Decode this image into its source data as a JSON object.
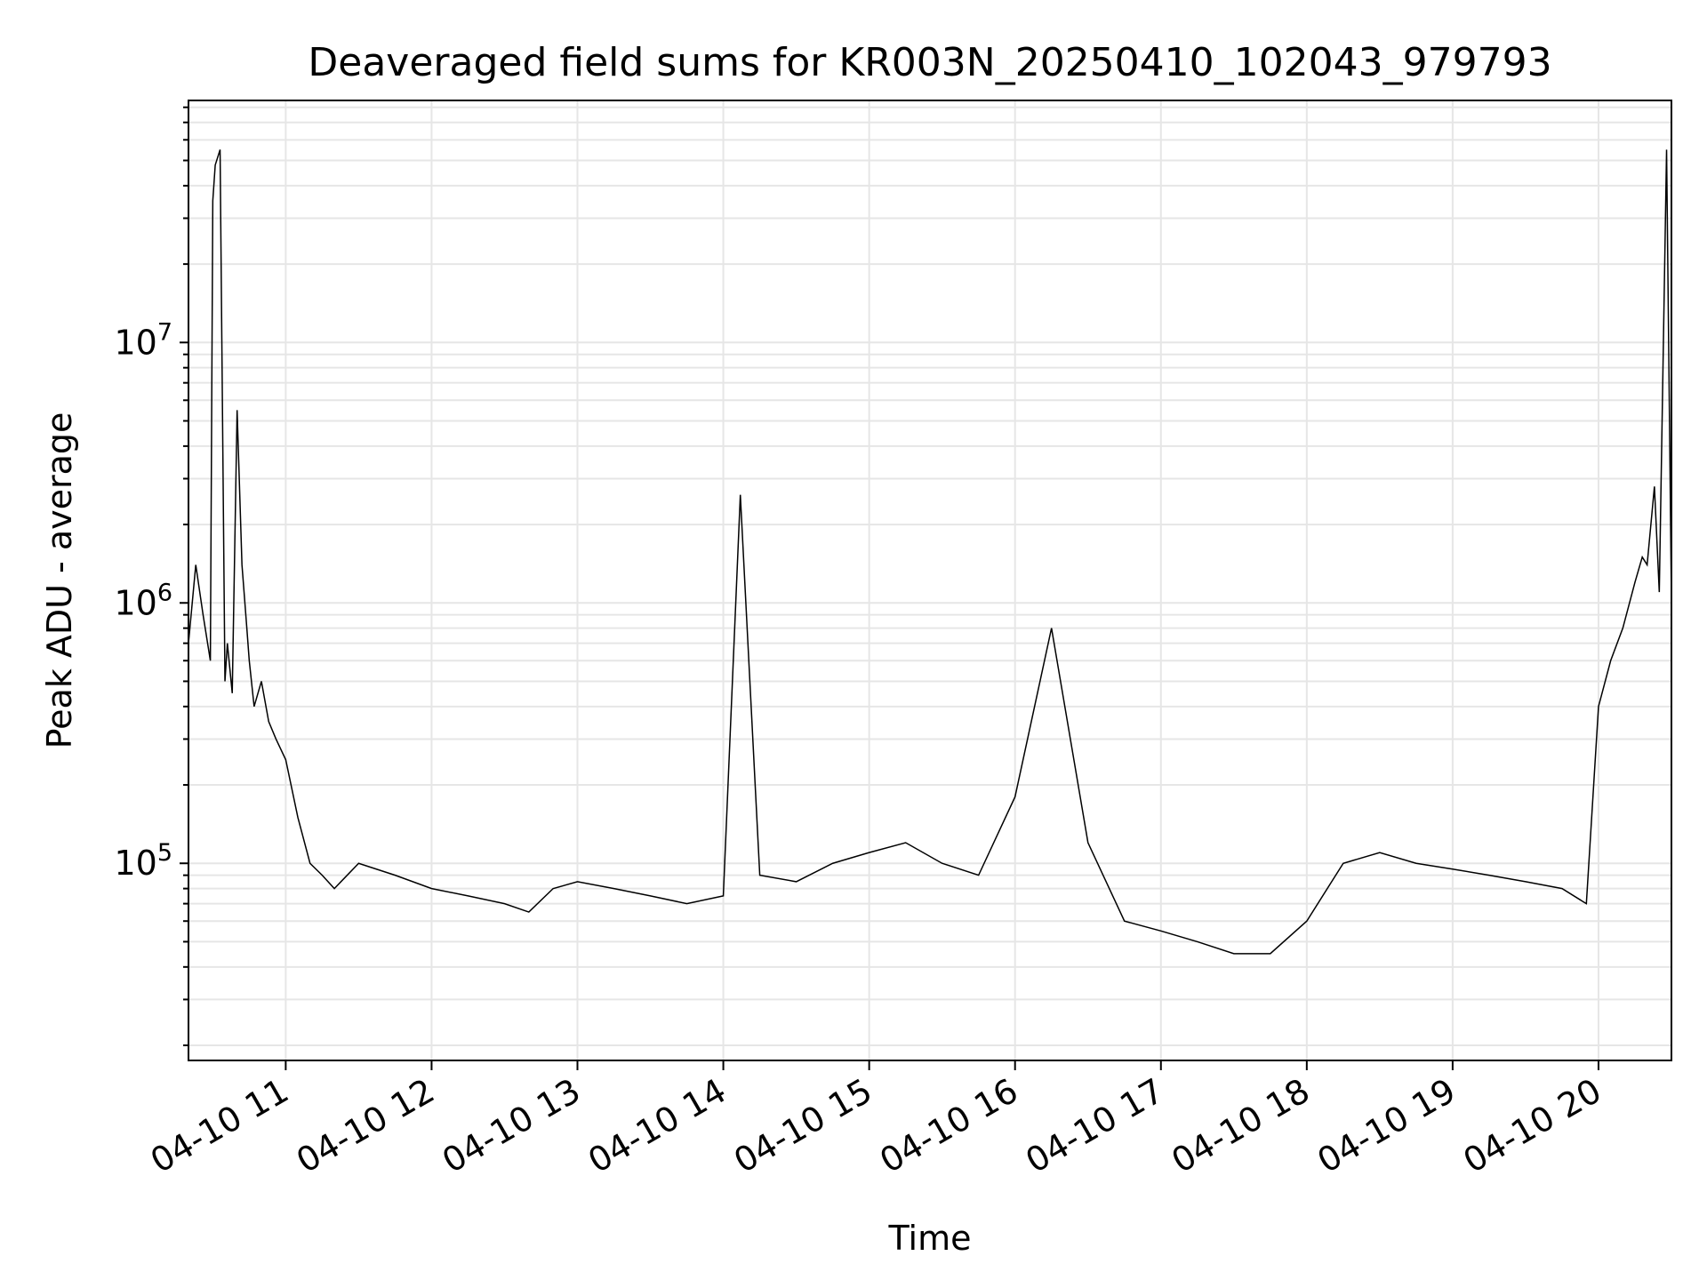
{
  "chart_data": {
    "type": "line",
    "title": "Deaveraged field sums for KR003N_20250410_102043_979793",
    "xlabel": "Time",
    "ylabel": "Peak ADU - average",
    "yscale": "log",
    "grid": true,
    "xlim": [
      "2025-04-10 10:20",
      "2025-04-10 20:30"
    ],
    "ylim": [
      17500,
      85000000
    ],
    "x_ticks": [
      {
        "t": "2025-04-10 11:00",
        "label": "04-10 11"
      },
      {
        "t": "2025-04-10 12:00",
        "label": "04-10 12"
      },
      {
        "t": "2025-04-10 13:00",
        "label": "04-10 13"
      },
      {
        "t": "2025-04-10 14:00",
        "label": "04-10 14"
      },
      {
        "t": "2025-04-10 15:00",
        "label": "04-10 15"
      },
      {
        "t": "2025-04-10 16:00",
        "label": "04-10 16"
      },
      {
        "t": "2025-04-10 17:00",
        "label": "04-10 17"
      },
      {
        "t": "2025-04-10 18:00",
        "label": "04-10 18"
      },
      {
        "t": "2025-04-10 19:00",
        "label": "04-10 19"
      },
      {
        "t": "2025-04-10 20:00",
        "label": "04-10 20"
      }
    ],
    "y_ticks": [
      {
        "value": 100000,
        "base": "10",
        "exp": "5"
      },
      {
        "value": 1000000,
        "base": "10",
        "exp": "6"
      },
      {
        "value": 10000000,
        "base": "10",
        "exp": "7"
      }
    ],
    "line_color": "#000000",
    "series": [
      {
        "x": [
          "2025-04-10 10:20",
          "2025-04-10 10:23",
          "2025-04-10 10:26",
          "2025-04-10 10:29",
          "2025-04-10 10:30",
          "2025-04-10 10:31",
          "2025-04-10 10:33",
          "2025-04-10 10:35",
          "2025-04-10 10:36",
          "2025-04-10 10:38",
          "2025-04-10 10:40",
          "2025-04-10 10:42",
          "2025-04-10 10:44",
          "2025-04-10 10:45",
          "2025-04-10 10:47",
          "2025-04-10 10:50",
          "2025-04-10 10:53",
          "2025-04-10 10:56",
          "2025-04-10 11:00",
          "2025-04-10 11:05",
          "2025-04-10 11:10",
          "2025-04-10 11:15",
          "2025-04-10 11:20",
          "2025-04-10 11:30",
          "2025-04-10 11:45",
          "2025-04-10 12:00",
          "2025-04-10 12:15",
          "2025-04-10 12:30",
          "2025-04-10 12:40",
          "2025-04-10 12:50",
          "2025-04-10 13:00",
          "2025-04-10 13:15",
          "2025-04-10 13:30",
          "2025-04-10 13:45",
          "2025-04-10 14:00",
          "2025-04-10 14:07",
          "2025-04-10 14:15",
          "2025-04-10 14:30",
          "2025-04-10 14:45",
          "2025-04-10 15:00",
          "2025-04-10 15:15",
          "2025-04-10 15:30",
          "2025-04-10 15:45",
          "2025-04-10 16:00",
          "2025-04-10 16:15",
          "2025-04-10 16:30",
          "2025-04-10 16:45",
          "2025-04-10 17:00",
          "2025-04-10 17:15",
          "2025-04-10 17:30",
          "2025-04-10 17:45",
          "2025-04-10 18:00",
          "2025-04-10 18:15",
          "2025-04-10 18:30",
          "2025-04-10 18:45",
          "2025-04-10 19:00",
          "2025-04-10 19:15",
          "2025-04-10 19:30",
          "2025-04-10 19:45",
          "2025-04-10 19:55",
          "2025-04-10 20:00",
          "2025-04-10 20:05",
          "2025-04-10 20:10",
          "2025-04-10 20:15",
          "2025-04-10 20:18",
          "2025-04-10 20:20",
          "2025-04-10 20:23",
          "2025-04-10 20:25",
          "2025-04-10 20:28",
          "2025-04-10 20:30"
        ],
        "y": [
          700000,
          1400000,
          900000,
          600000,
          35000000,
          48000000,
          55000000,
          500000,
          700000,
          450000,
          5500000,
          1400000,
          800000,
          600000,
          400000,
          500000,
          350000,
          300000,
          250000,
          150000,
          100000,
          90000,
          80000,
          100000,
          90000,
          80000,
          75000,
          70000,
          65000,
          80000,
          85000,
          80000,
          75000,
          70000,
          75000,
          2600000,
          90000,
          85000,
          100000,
          110000,
          120000,
          100000,
          90000,
          180000,
          800000,
          120000,
          60000,
          55000,
          50000,
          45000,
          45000,
          60000,
          100000,
          110000,
          100000,
          95000,
          90000,
          85000,
          80000,
          70000,
          400000,
          600000,
          800000,
          1200000,
          1500000,
          1400000,
          2800000,
          1100000,
          55000000,
          1000000
        ]
      }
    ]
  }
}
